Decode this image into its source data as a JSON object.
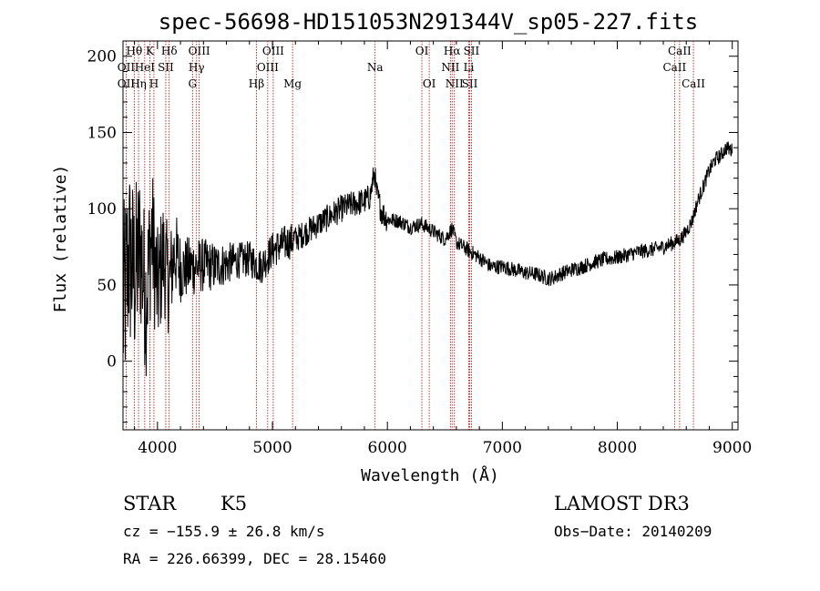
{
  "chart_data": {
    "type": "line",
    "title": "spec-56698-HD151053N291344V_sp05-227.fits",
    "xlabel": "Wavelength (Å)",
    "ylabel": "Flux (relative)",
    "xlim": [
      3700,
      9050
    ],
    "ylim": [
      -45,
      210
    ],
    "x_ticks": [
      4000,
      5000,
      6000,
      7000,
      8000,
      9000
    ],
    "y_ticks": [
      0,
      50,
      100,
      150,
      200
    ],
    "series": [
      {
        "name": "flux",
        "x": [
          3700,
          3750,
          3800,
          3850,
          3900,
          3950,
          4000,
          4050,
          4100,
          4150,
          4200,
          4300,
          4400,
          4500,
          4600,
          4700,
          4800,
          4900,
          5000,
          5100,
          5200,
          5300,
          5400,
          5500,
          5600,
          5700,
          5800,
          5850,
          5890,
          5900,
          5950,
          6000,
          6100,
          6200,
          6300,
          6400,
          6500,
          6563,
          6600,
          6700,
          6800,
          6900,
          7000,
          7100,
          7200,
          7300,
          7400,
          7450,
          7500,
          7600,
          7700,
          7800,
          7900,
          8000,
          8100,
          8200,
          8300,
          8400,
          8500,
          8550,
          8600,
          8650,
          8700,
          8750,
          8800,
          8850,
          8900,
          8950,
          9000
        ],
        "y": [
          30,
          70,
          55,
          75,
          40,
          85,
          45,
          70,
          50,
          72,
          60,
          62,
          63,
          62,
          64,
          66,
          67,
          62,
          73,
          77,
          80,
          85,
          90,
          95,
          100,
          103,
          105,
          108,
          125,
          112,
          98,
          93,
          92,
          88,
          90,
          85,
          80,
          87,
          78,
          73,
          68,
          62,
          62,
          60,
          58,
          57,
          54,
          55,
          57,
          60,
          62,
          65,
          67,
          68,
          70,
          72,
          73,
          75,
          78,
          80,
          85,
          92,
          105,
          115,
          125,
          132,
          135,
          140,
          138
        ]
      }
    ],
    "lines": [
      {
        "name": "Hθ",
        "wave": 3798,
        "row": 0
      },
      {
        "name": "K",
        "wave": 3934,
        "row": 0
      },
      {
        "name": "Hδ",
        "wave": 4102,
        "row": 0
      },
      {
        "name": "OIII",
        "wave": 4363,
        "row": 0
      },
      {
        "name": "OIII",
        "wave": 5007,
        "row": 0
      },
      {
        "name": "OI",
        "wave": 6300,
        "row": 0
      },
      {
        "name": "Hα",
        "wave": 6563,
        "row": 0
      },
      {
        "name": "SII",
        "wave": 6731,
        "row": 0
      },
      {
        "name": "CaII",
        "wave": 8542,
        "row": 0
      },
      {
        "name": "OII",
        "wave": 3727,
        "row": 1
      },
      {
        "name": "HeI",
        "wave": 3889,
        "row": 1
      },
      {
        "name": "SII",
        "wave": 4072,
        "row": 1
      },
      {
        "name": "Hγ",
        "wave": 4340,
        "row": 1
      },
      {
        "name": "OIII",
        "wave": 4959,
        "row": 1
      },
      {
        "name": "Na",
        "wave": 5893,
        "row": 1
      },
      {
        "name": "NII",
        "wave": 6548,
        "row": 1
      },
      {
        "name": "Li",
        "wave": 6708,
        "row": 1
      },
      {
        "name": "CaII",
        "wave": 8498,
        "row": 1
      },
      {
        "name": "OII",
        "wave": 3727,
        "row": 2
      },
      {
        "name": "Hη",
        "wave": 3835,
        "row": 2
      },
      {
        "name": "H",
        "wave": 3969,
        "row": 2
      },
      {
        "name": "G",
        "wave": 4305,
        "row": 2
      },
      {
        "name": "Hβ",
        "wave": 4861,
        "row": 2
      },
      {
        "name": "Mg",
        "wave": 5175,
        "row": 2
      },
      {
        "name": "OI",
        "wave": 6364,
        "row": 2
      },
      {
        "name": "NII",
        "wave": 6583,
        "row": 2
      },
      {
        "name": "SII",
        "wave": 6716,
        "row": 2
      },
      {
        "name": "CaII",
        "wave": 8662,
        "row": 2
      }
    ]
  },
  "info": {
    "object_class": "STAR",
    "subclass": "K5",
    "survey": "LAMOST DR3",
    "cz": "cz = −155.9 ± 26.8 km/s",
    "obs_date": "Obs−Date: 20140209",
    "coords": "RA = 226.66399, DEC =  28.15460"
  },
  "colors": {
    "spectrum": "#000000",
    "marker_lines": "#c00000",
    "axes": "#000000"
  }
}
